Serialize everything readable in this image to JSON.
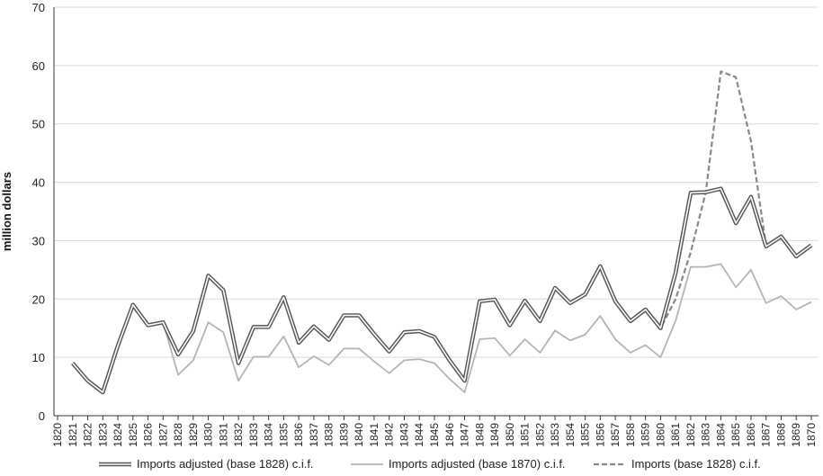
{
  "chart_data": {
    "type": "line",
    "ylabel": "million dollars",
    "xlabel": "",
    "ylim": [
      0,
      70
    ],
    "yticks": [
      0,
      10,
      20,
      30,
      40,
      50,
      60,
      70
    ],
    "grid": "horizontal",
    "legend_position": "bottom",
    "categories": [
      "1820",
      "1821",
      "1822",
      "1823",
      "1824",
      "1825",
      "1826",
      "1827",
      "1828",
      "1829",
      "1830",
      "1831",
      "1832",
      "1833",
      "1834",
      "1835",
      "1836",
      "1837",
      "1838",
      "1839",
      "1840",
      "1841",
      "1842",
      "1843",
      "1844",
      "1845",
      "1846",
      "1847",
      "1848",
      "1849",
      "1850",
      "1851",
      "1852",
      "1853",
      "1854",
      "1855",
      "1856",
      "1857",
      "1858",
      "1859",
      "1860",
      "1861",
      "1862",
      "1863",
      "1864",
      "1865",
      "1866",
      "1867",
      "1868",
      "1869",
      "1870"
    ],
    "series": [
      {
        "name": "Imports adjusted (base 1828) c.i.f.",
        "style": "double",
        "color": "#555555",
        "values": [
          null,
          9,
          6,
          4,
          12,
          19,
          15.5,
          16,
          10.5,
          14.5,
          24,
          21.5,
          9,
          15.2,
          15.2,
          20.3,
          12.5,
          15.3,
          13,
          17.2,
          17.2,
          14,
          11,
          14.3,
          14.5,
          13.5,
          9.5,
          6,
          19.6,
          19.9,
          15.5,
          19.7,
          16.2,
          21.9,
          19.3,
          20.8,
          25.6,
          19.6,
          16.2,
          18.2,
          15,
          24.5,
          38.2,
          38.3,
          38.9,
          33,
          37.5,
          29,
          30.7,
          27.3,
          29.2
        ]
      },
      {
        "name": "Imports adjusted (base 1870) c.i.f.",
        "style": "solid",
        "color": "#b4b4b4",
        "values": [
          null,
          9,
          6,
          4,
          12,
          19,
          15.5,
          16,
          7,
          9.5,
          16,
          14.3,
          6,
          10.1,
          10.1,
          13.6,
          8.3,
          10.2,
          8.7,
          11.5,
          11.5,
          9.3,
          7.3,
          9.5,
          9.7,
          9,
          6.3,
          4,
          13.1,
          13.3,
          10.3,
          13.1,
          10.8,
          14.6,
          12.9,
          13.9,
          17.1,
          13.1,
          10.8,
          12.1,
          10,
          16.3,
          25.5,
          25.5,
          26,
          22,
          25,
          19.3,
          20.5,
          18.2,
          19.5
        ]
      },
      {
        "name": "Imports (base 1828) c.i.f.",
        "style": "dashed",
        "color": "#888888",
        "values": [
          null,
          9,
          6,
          4,
          12,
          19,
          15.5,
          16,
          10.5,
          14.5,
          24,
          21.5,
          9,
          15.2,
          15.2,
          20.3,
          12.5,
          15.3,
          13,
          17.2,
          17.2,
          14,
          11,
          14.3,
          14.5,
          13.5,
          9.5,
          6,
          19.6,
          19.9,
          15.5,
          19.7,
          16.2,
          21.9,
          19.3,
          20.8,
          25.6,
          19.6,
          16.2,
          18.2,
          15,
          20,
          28,
          38.3,
          59,
          58,
          47,
          29,
          30.7,
          27.3,
          29.2
        ]
      }
    ]
  }
}
